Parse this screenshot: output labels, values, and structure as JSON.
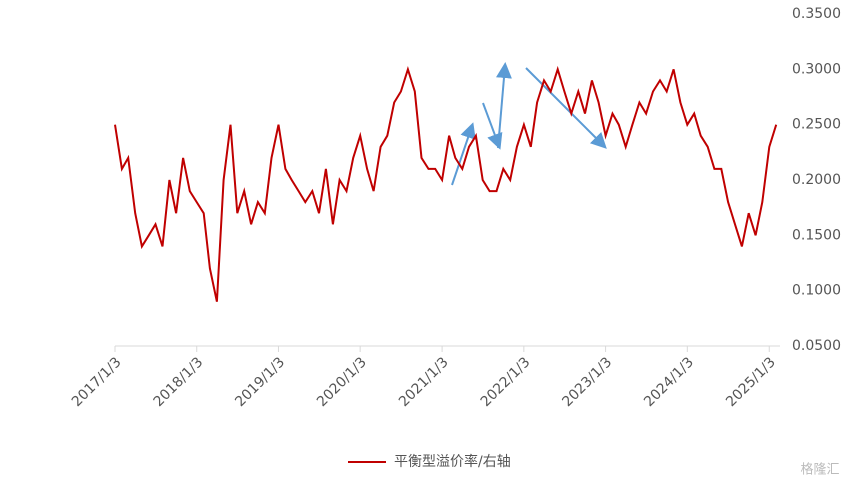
{
  "chart_data": {
    "type": "line",
    "legend": "bottom",
    "watermark": "格隆汇",
    "x": [
      "2017/1/3",
      "2017/2/3",
      "2017/3/3",
      "2017/4/3",
      "2017/5/3",
      "2017/6/3",
      "2017/7/3",
      "2017/8/3",
      "2017/9/3",
      "2017/10/3",
      "2017/11/3",
      "2017/12/3",
      "2018/1/3",
      "2018/2/3",
      "2018/3/3",
      "2018/4/3",
      "2018/5/3",
      "2018/6/3",
      "2018/7/3",
      "2018/8/3",
      "2018/9/3",
      "2018/10/3",
      "2018/11/3",
      "2018/12/3",
      "2019/1/3",
      "2019/2/3",
      "2019/3/3",
      "2019/4/3",
      "2019/5/3",
      "2019/6/3",
      "2019/7/3",
      "2019/8/3",
      "2019/9/3",
      "2019/10/3",
      "2019/11/3",
      "2019/12/3",
      "2020/1/3",
      "2020/2/3",
      "2020/3/3",
      "2020/4/3",
      "2020/5/3",
      "2020/6/3",
      "2020/7/3",
      "2020/8/3",
      "2020/9/3",
      "2020/10/3",
      "2020/11/3",
      "2020/12/3",
      "2021/1/3",
      "2021/2/3",
      "2021/3/3",
      "2021/4/3",
      "2021/5/3",
      "2021/6/3",
      "2021/7/3",
      "2021/8/3",
      "2021/9/3",
      "2021/10/3",
      "2021/11/3",
      "2021/12/3",
      "2022/1/3",
      "2022/2/3",
      "2022/3/3",
      "2022/4/3",
      "2022/5/3",
      "2022/6/3",
      "2022/7/3",
      "2022/8/3",
      "2022/9/3",
      "2022/10/3",
      "2022/11/3",
      "2022/12/3",
      "2023/1/3",
      "2023/2/3",
      "2023/3/3",
      "2023/4/3",
      "2023/5/3",
      "2023/6/3",
      "2023/7/3",
      "2023/8/3",
      "2023/9/3",
      "2023/10/3",
      "2023/11/3",
      "2023/12/3",
      "2024/1/3",
      "2024/2/3",
      "2024/3/3",
      "2024/4/3",
      "2024/5/3",
      "2024/6/3",
      "2024/7/3",
      "2024/8/3",
      "2024/9/3",
      "2024/10/3",
      "2024/11/3",
      "2024/12/3",
      "2025/1/3",
      "2025/2/3"
    ],
    "series": [
      {
        "name": "平衡型溢价率/右轴",
        "color": "#c00000",
        "axis": "y2",
        "values": [
          0.25,
          0.21,
          0.22,
          0.17,
          0.14,
          0.15,
          0.16,
          0.14,
          0.2,
          0.17,
          0.22,
          0.19,
          0.18,
          0.17,
          0.12,
          0.09,
          0.2,
          0.25,
          0.17,
          0.19,
          0.16,
          0.18,
          0.17,
          0.22,
          0.25,
          0.21,
          0.2,
          0.19,
          0.18,
          0.19,
          0.17,
          0.21,
          0.16,
          0.2,
          0.19,
          0.22,
          0.24,
          0.21,
          0.19,
          0.23,
          0.24,
          0.27,
          0.28,
          0.3,
          0.28,
          0.22,
          0.21,
          0.21,
          0.2,
          0.24,
          0.22,
          0.21,
          0.23,
          0.24,
          0.2,
          0.19,
          0.19,
          0.21,
          0.2,
          0.23,
          0.25,
          0.23,
          0.27,
          0.29,
          0.28,
          0.3,
          0.28,
          0.26,
          0.28,
          0.26,
          0.29,
          0.27,
          0.24,
          0.26,
          0.25,
          0.23,
          0.25,
          0.27,
          0.26,
          0.28,
          0.29,
          0.28,
          0.3,
          0.27,
          0.25,
          0.26,
          0.24,
          0.23,
          0.21,
          0.21,
          0.18,
          0.16,
          0.14,
          0.17,
          0.15,
          0.18,
          0.23,
          0.25
        ]
      }
    ],
    "xlim": [
      "2017/1/3",
      "2025/2/20"
    ],
    "xticks": [
      "2017/1/3",
      "2018/1/3",
      "2019/1/3",
      "2020/1/3",
      "2021/1/3",
      "2022/1/3",
      "2023/1/3",
      "2024/1/3",
      "2025/1/3"
    ],
    "y2lim": [
      0.05,
      0.35
    ],
    "y2ticks": [
      {
        "value": 0.05,
        "label": "0.0500"
      },
      {
        "value": 0.1,
        "label": "0.1000"
      },
      {
        "value": 0.15,
        "label": "0.1500"
      },
      {
        "value": 0.2,
        "label": "0.2000"
      },
      {
        "value": 0.25,
        "label": "0.2500"
      },
      {
        "value": 0.3,
        "label": "0.3000"
      },
      {
        "value": 0.35,
        "label": "0.3500"
      }
    ]
  }
}
